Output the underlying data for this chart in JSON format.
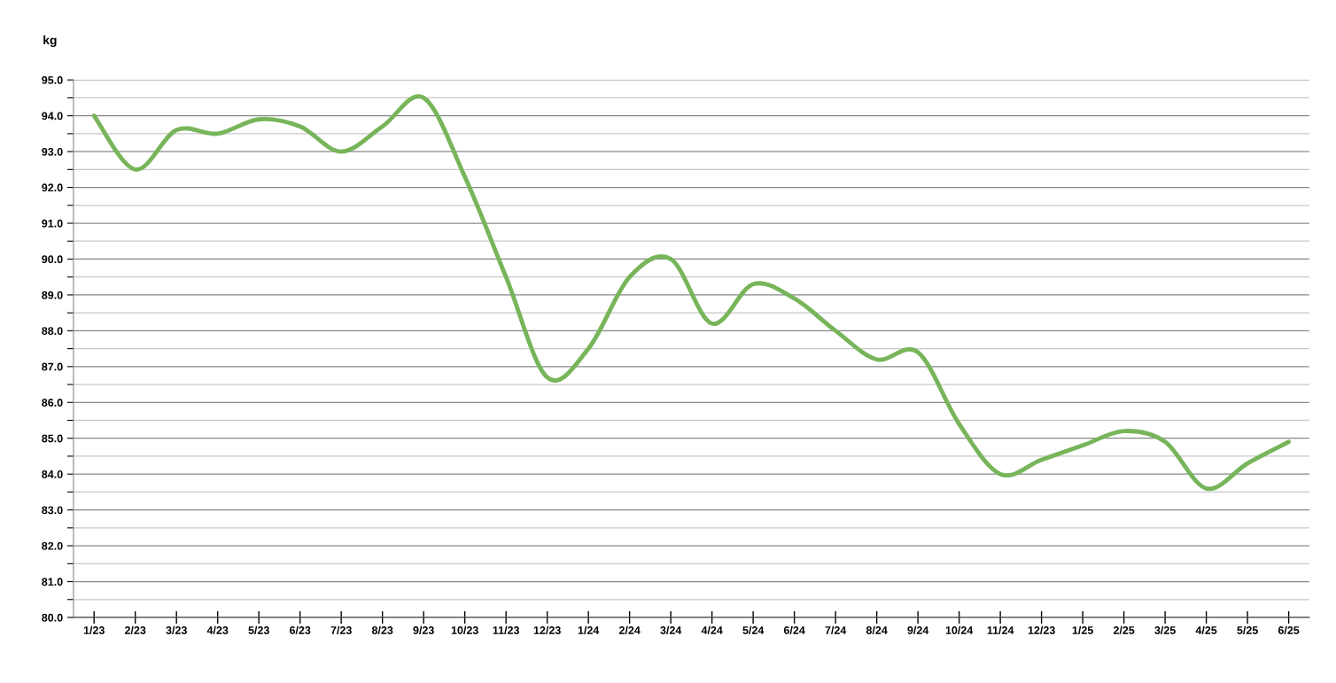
{
  "chart_data": {
    "type": "line",
    "ylabel": "kg",
    "categories": [
      "1/23",
      "2/23",
      "3/23",
      "4/23",
      "5/23",
      "6/23",
      "7/23",
      "8/23",
      "9/23",
      "10/23",
      "11/23",
      "12/23",
      "1/24",
      "2/24",
      "3/24",
      "4/24",
      "5/24",
      "6/24",
      "7/24",
      "8/24",
      "9/24",
      "10/24",
      "11/24",
      "12/23",
      "1/25",
      "2/25",
      "3/25",
      "4/25",
      "5/25",
      "6/25"
    ],
    "series": [
      {
        "color": "#77b55a",
        "values": [
          94.0,
          92.5,
          93.6,
          93.5,
          93.9,
          93.7,
          93.0,
          93.7,
          94.5,
          92.3,
          89.5,
          86.7,
          87.5,
          89.5,
          90.0,
          88.2,
          89.3,
          88.9,
          88.0,
          87.2,
          87.4,
          85.4,
          84.0,
          84.4,
          84.8,
          85.2,
          84.9,
          83.6,
          84.3,
          84.9
        ]
      }
    ],
    "ylim": [
      80,
      95
    ],
    "yticks": [
      {
        "value": 80,
        "label": "80.0"
      },
      {
        "value": 80.5,
        "label": null
      },
      {
        "value": 81,
        "label": "81.0"
      },
      {
        "value": 81.5,
        "label": null
      },
      {
        "value": 82,
        "label": "82.0"
      },
      {
        "value": 82.5,
        "label": null
      },
      {
        "value": 83,
        "label": "83.0"
      },
      {
        "value": 83.5,
        "label": null
      },
      {
        "value": 84,
        "label": "84.0"
      },
      {
        "value": 84.5,
        "label": null
      },
      {
        "value": 85,
        "label": "85.0"
      },
      {
        "value": 85.5,
        "label": null
      },
      {
        "value": 86,
        "label": "86.0"
      },
      {
        "value": 86.5,
        "label": null
      },
      {
        "value": 87,
        "label": "87.0"
      },
      {
        "value": 87.5,
        "label": null
      },
      {
        "value": 88,
        "label": "88.0"
      },
      {
        "value": 88.5,
        "label": null
      },
      {
        "value": 89,
        "label": "89.0"
      },
      {
        "value": 89.5,
        "label": null
      },
      {
        "value": 90,
        "label": "90.0"
      },
      {
        "value": 90.5,
        "label": null
      },
      {
        "value": 91,
        "label": "91.0"
      },
      {
        "value": 91.5,
        "label": null
      },
      {
        "value": 92,
        "label": "92.0"
      },
      {
        "value": 92.5,
        "label": null
      },
      {
        "value": 93,
        "label": "93.0"
      },
      {
        "value": 93.5,
        "label": null
      },
      {
        "value": 94,
        "label": "94.0"
      },
      {
        "value": 94.5,
        "label": null
      },
      {
        "value": 95,
        "label": "95.0"
      }
    ],
    "grid": "y",
    "legend": false,
    "marker": "none",
    "line_style": "solid"
  }
}
